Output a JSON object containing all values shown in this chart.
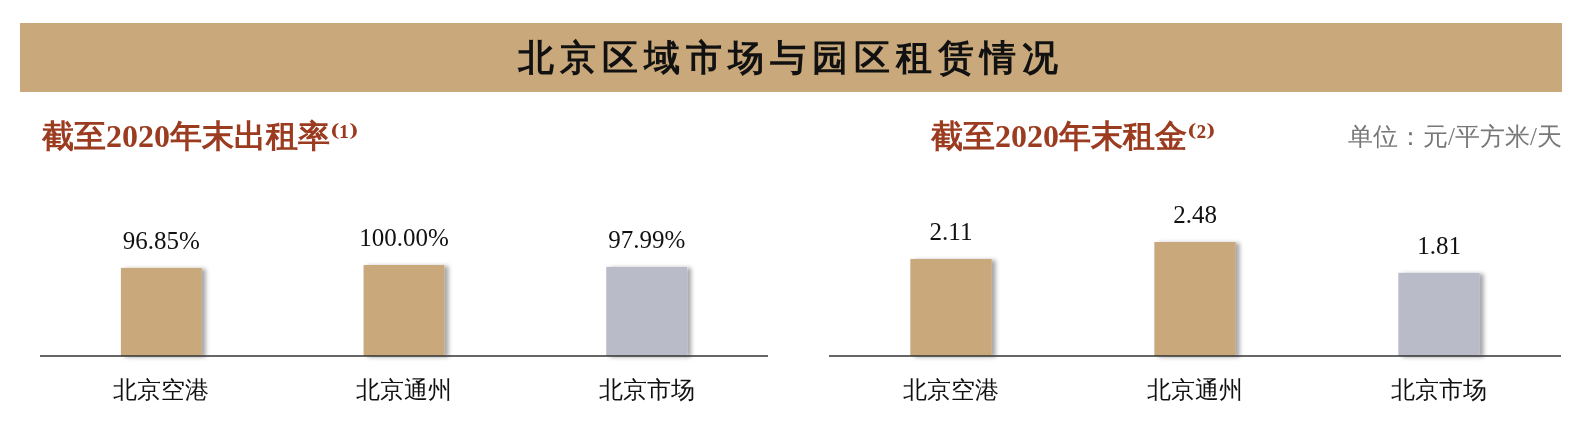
{
  "chart_data": [
    {
      "type": "other",
      "title": "北京区域市场与园区租赁情况"
    },
    {
      "type": "bar",
      "title": "截至2020年末出租率⁽¹⁾",
      "categories": [
        "北京空港",
        "北京通州",
        "北京市场"
      ],
      "values": [
        96.85,
        100,
        97.99
      ],
      "value_labels": [
        "96.85%",
        "100.00%",
        "97.99%"
      ],
      "colors": [
        "#c9a97b",
        "#c9a97b",
        "#b9bbc9"
      ]
    },
    {
      "type": "bar",
      "title": "截至2020年末租金⁽²⁾",
      "annotations": [
        "单位：元/平方米/天"
      ],
      "categories": [
        "北京空港",
        "北京通州",
        "北京市场"
      ],
      "values": [
        2.11,
        2.48,
        1.81
      ],
      "data_labels": true,
      "colors": [
        "#c9a97b",
        "#c9a97b",
        "#b9bbc9"
      ]
    }
  ]
}
